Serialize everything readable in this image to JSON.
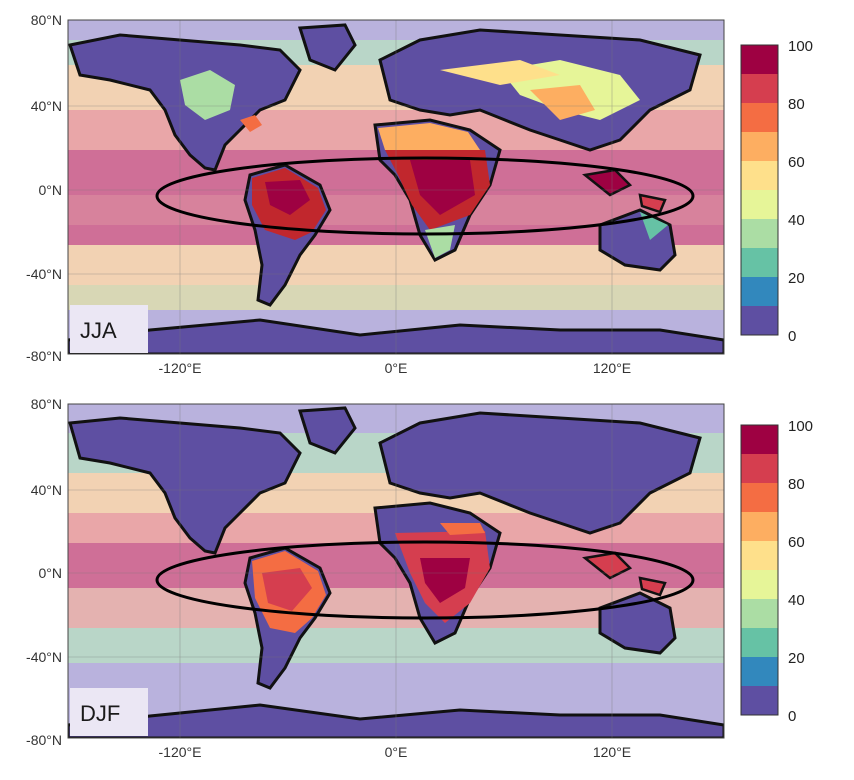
{
  "maps": [
    {
      "season": "JJA",
      "lat_ticks": [
        "80°N",
        "40°N",
        "0°N",
        "-40°N",
        "-80°N"
      ],
      "lon_ticks": [
        "-120°E",
        "0°E",
        "120°E"
      ]
    },
    {
      "season": "DJF",
      "lat_ticks": [
        "80°N",
        "40°N",
        "0°N",
        "-40°N",
        "-80°N"
      ],
      "lon_ticks": [
        "-120°E",
        "0°E",
        "120°E"
      ]
    }
  ],
  "colorbar": {
    "ticks": [
      "100",
      "80",
      "60",
      "40",
      "20",
      "0"
    ],
    "colors": [
      "#9e0142",
      "#d53e4f",
      "#f46d43",
      "#fdae61",
      "#fee08b",
      "#e6f598",
      "#abdda4",
      "#66c2a5",
      "#3288bd",
      "#5e4fa2"
    ]
  },
  "colors": {
    "ocean_tropics": "#cf6f97",
    "ocean_subtrop": "#f2d2b3",
    "ocean_midlat": "#b9d6c8",
    "ocean_polar": "#b9b2dd",
    "land_dry": "#5e4fa2",
    "outline": "#111111"
  }
}
